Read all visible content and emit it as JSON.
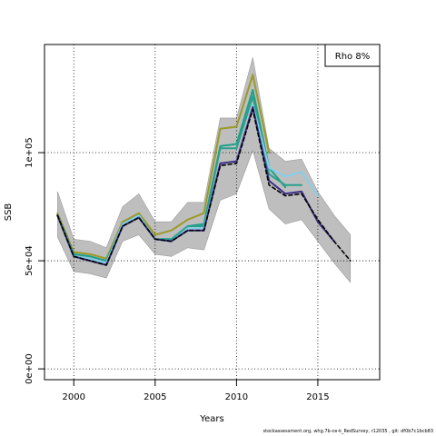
{
  "chart_data": {
    "type": "line",
    "title": "",
    "xlabel": "Years",
    "ylabel": "SSB",
    "xlim": [
      1998.2,
      2018.8
    ],
    "ylim": [
      -5000,
      150000
    ],
    "xticks": [
      2000,
      2005,
      2010,
      2015
    ],
    "xtick_labels": [
      "2000",
      "2005",
      "2010",
      "2015"
    ],
    "yticks": [
      0,
      50000,
      100000
    ],
    "ytick_labels": [
      "0e+00",
      "5e+04",
      "1e+05"
    ],
    "grid": "dotted",
    "grid_x": [
      2000,
      2005,
      2010,
      2015
    ],
    "grid_y": [
      0,
      50000,
      100000
    ],
    "legend": {
      "label": "Rho 8%",
      "position": "top-right"
    },
    "band": {
      "x": [
        1999,
        2000,
        2001,
        2002,
        2003,
        2004,
        2005,
        2006,
        2007,
        2008,
        2009,
        2010,
        2011,
        2012,
        2013,
        2014,
        2015,
        2016,
        2017
      ],
      "upper": [
        82000,
        60000,
        59000,
        56000,
        75000,
        81000,
        68000,
        68000,
        77000,
        77000,
        116000,
        116000,
        144000,
        102000,
        96000,
        97000,
        82000,
        71000,
        62000
      ],
      "lower": [
        61000,
        45000,
        44000,
        42000,
        59000,
        62000,
        53000,
        52000,
        56000,
        55000,
        78000,
        81000,
        101000,
        74000,
        67000,
        69000,
        59000,
        49000,
        40000
      ]
    },
    "series": [
      {
        "color": "#9a9a28",
        "x": [
          1999,
          2000,
          2001,
          2002,
          2003,
          2004,
          2005,
          2006,
          2007,
          2008,
          2009,
          2010,
          2011,
          2012
        ],
        "values": [
          72000,
          54000,
          53000,
          51000,
          68000,
          72000,
          62000,
          64000,
          69000,
          72000,
          111000,
          112000,
          136000,
          100000
        ]
      },
      {
        "color": "#1ea08a",
        "x": [
          1999,
          2000,
          2001,
          2002,
          2003,
          2004,
          2005,
          2006,
          2007,
          2008,
          2009,
          2010,
          2011,
          2012,
          2013
        ],
        "values": [
          71000,
          53000,
          52000,
          50000,
          67000,
          71000,
          60000,
          60000,
          66000,
          67000,
          103000,
          104000,
          129000,
          93000,
          84000
        ]
      },
      {
        "color": "#2aa08c",
        "x": [
          1999,
          2000,
          2001,
          2002,
          2003,
          2004,
          2005,
          2006,
          2007,
          2008,
          2009,
          2010,
          2011,
          2012,
          2013,
          2014
        ],
        "values": [
          71000,
          52000,
          51000,
          49000,
          67000,
          71000,
          60000,
          59000,
          66000,
          66000,
          102000,
          102000,
          126000,
          90000,
          85000,
          85000
        ]
      },
      {
        "color": "#87ceeb",
        "x": [
          1999,
          2000,
          2001,
          2002,
          2003,
          2004,
          2005,
          2006,
          2007,
          2008,
          2009,
          2010,
          2011,
          2012,
          2013,
          2014,
          2015
        ],
        "values": [
          71000,
          52000,
          51000,
          49000,
          67000,
          71000,
          60000,
          59000,
          65000,
          65000,
          95000,
          96000,
          122000,
          93000,
          89000,
          91000,
          80000
        ]
      },
      {
        "color": "#3b2f86",
        "x": [
          1999,
          2000,
          2001,
          2002,
          2003,
          2004,
          2005,
          2006,
          2007,
          2008,
          2009,
          2010,
          2011,
          2012,
          2013,
          2014,
          2015,
          2016
        ],
        "values": [
          71000,
          52000,
          50000,
          48000,
          66000,
          70000,
          60000,
          59000,
          64000,
          64000,
          95000,
          96000,
          121000,
          87000,
          81000,
          82000,
          68000,
          59000
        ]
      },
      {
        "color": "#000000",
        "dashed": true,
        "x": [
          1999,
          2000,
          2001,
          2002,
          2003,
          2004,
          2005,
          2006,
          2007,
          2008,
          2009,
          2010,
          2011,
          2012,
          2013,
          2014,
          2015,
          2016,
          2017
        ],
        "values": [
          71000,
          52000,
          50000,
          48000,
          66000,
          70000,
          60000,
          59000,
          64000,
          64000,
          94000,
          95000,
          120000,
          85000,
          80000,
          81000,
          69000,
          59000,
          50000
        ]
      }
    ],
    "colors": {
      "band": "#bebebe",
      "band_edge": "#9a9a9a",
      "axis": "#000000",
      "grid": "#000000"
    }
  },
  "footer": {
    "text": "stockassessment.org, whg.7b-ce-k_RedSurvey, r12035 , git: df0b7c1bcb83"
  }
}
